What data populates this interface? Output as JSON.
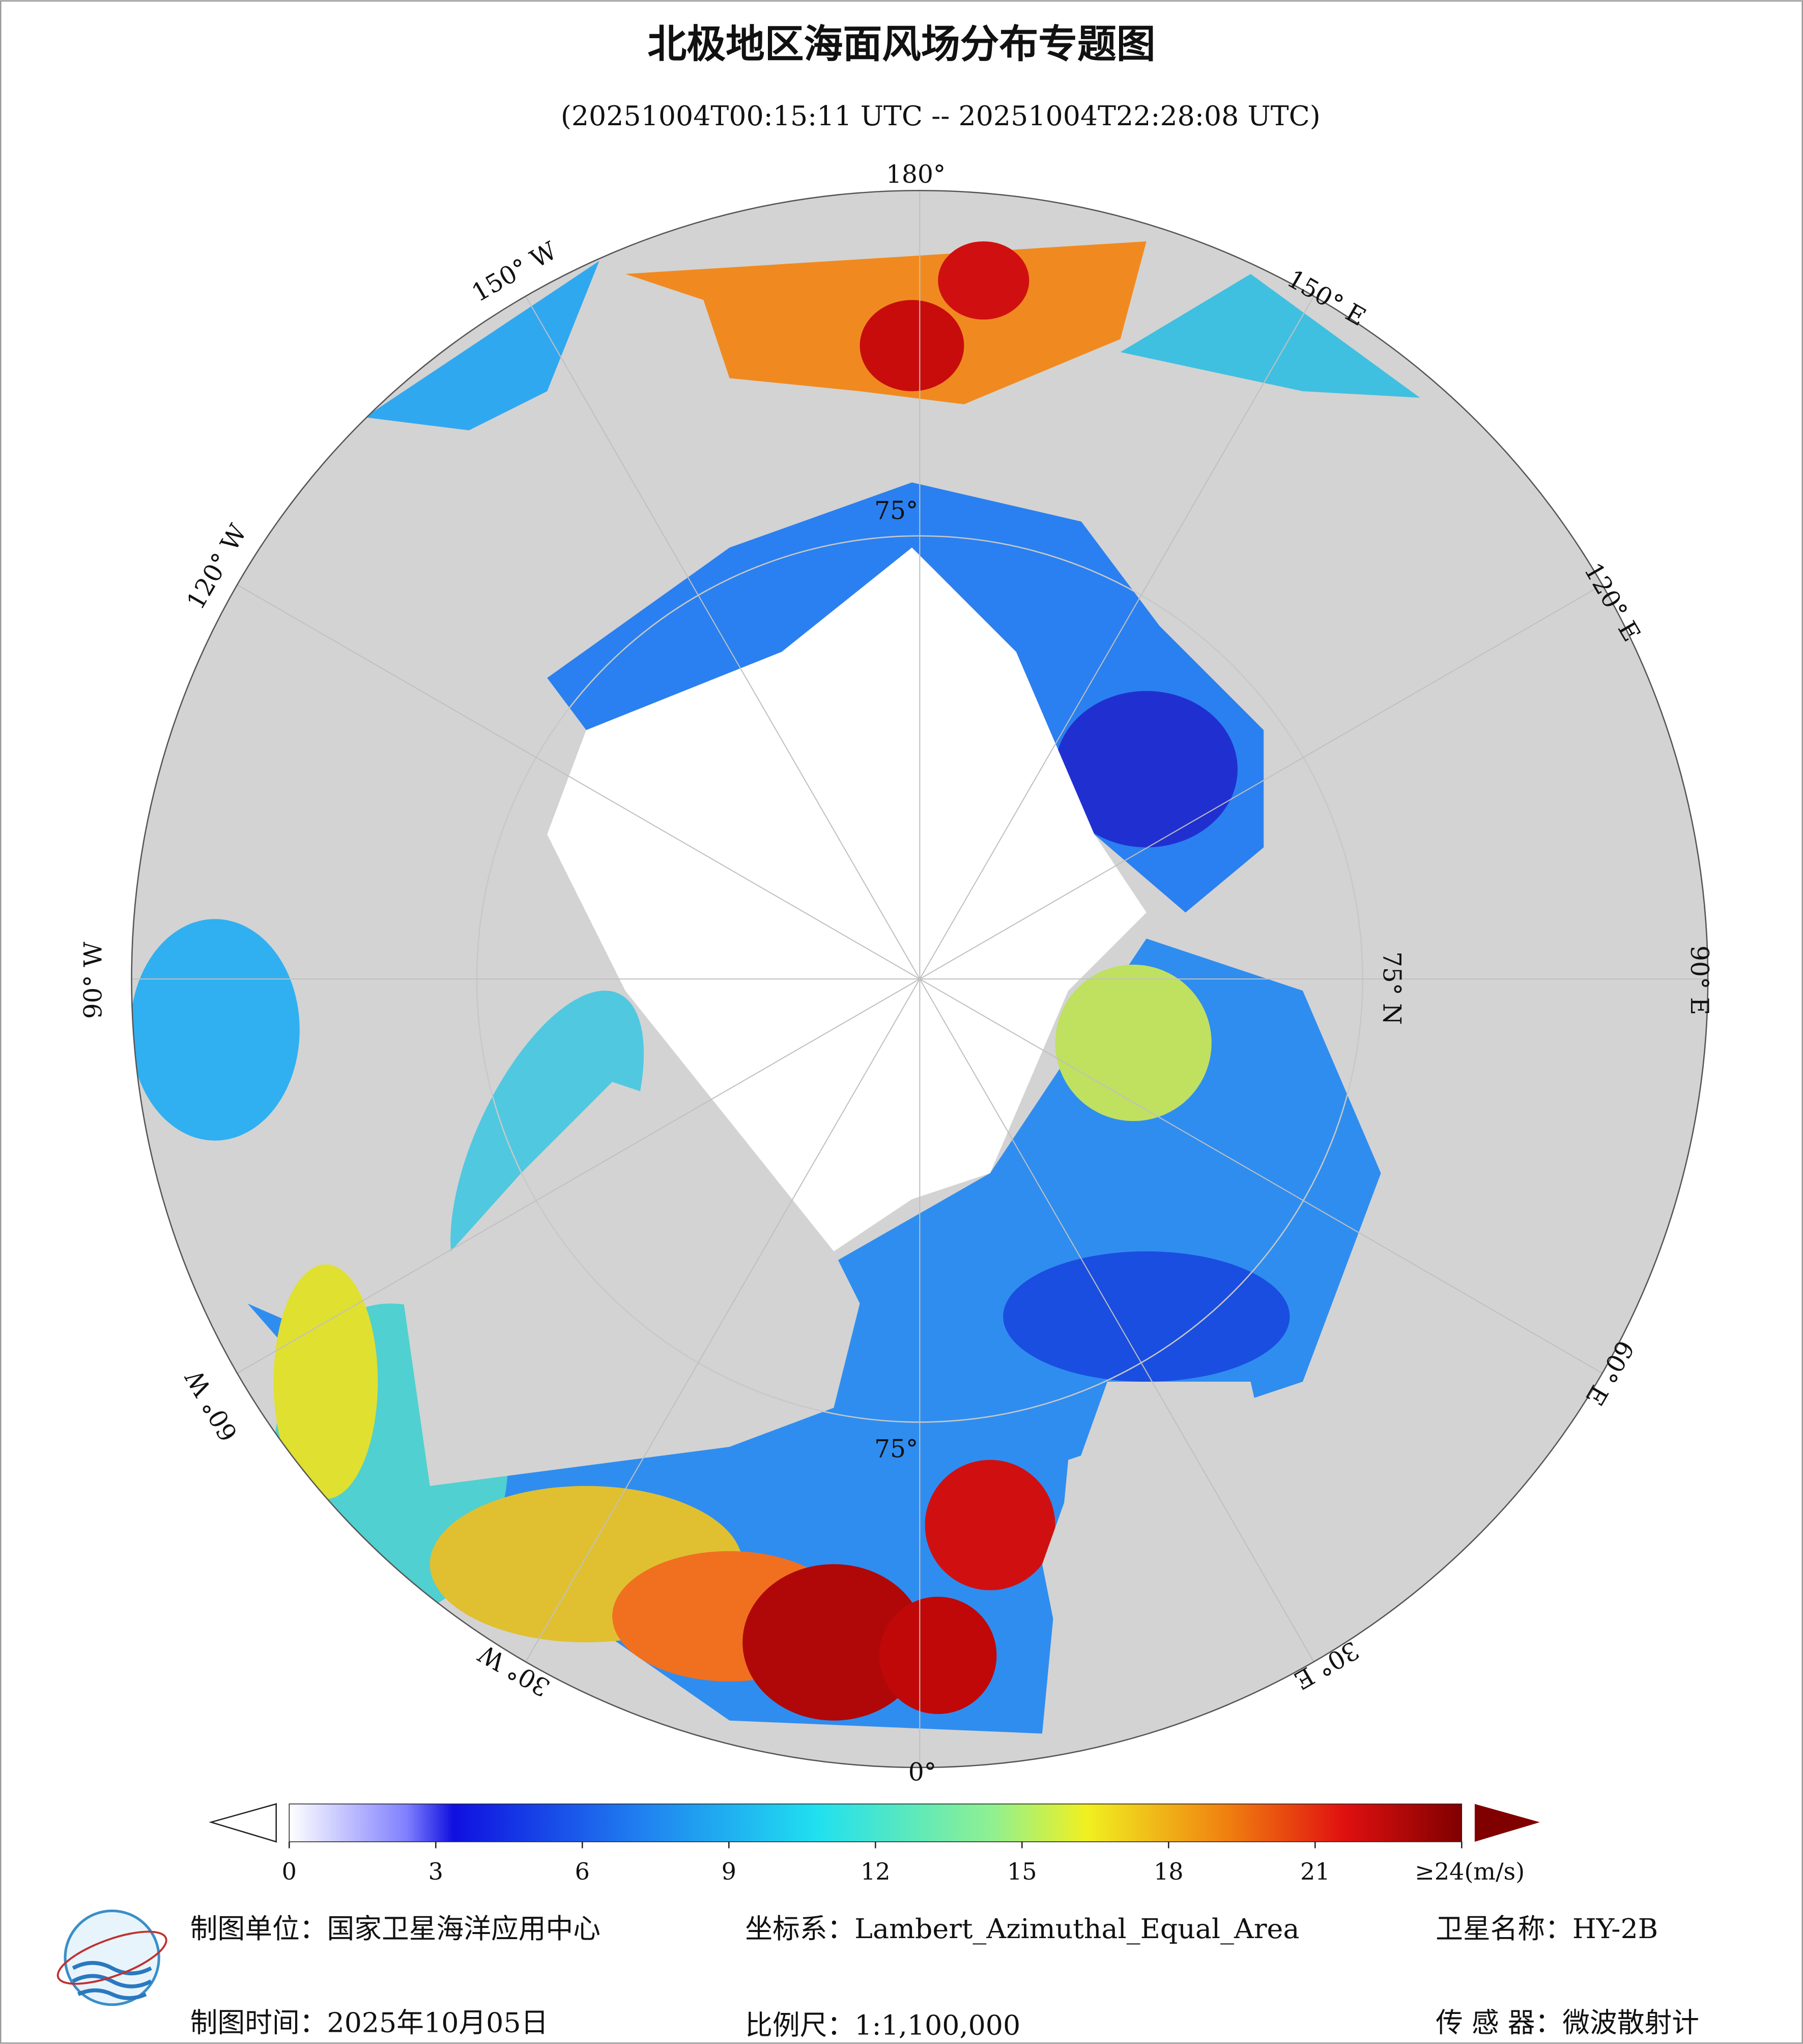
{
  "header": {
    "title": "北极地区海面风场分布专题图",
    "subtitle": "(20251004T00:15:11 UTC -- 20251004T22:28:08 UTC)"
  },
  "map": {
    "longitude_labels": [
      "180°",
      "150° W",
      "150° E",
      "120° W",
      "120° E",
      "90° W",
      "90° E",
      "60° W",
      "60° E",
      "30° W",
      "30° E",
      "0°"
    ],
    "latitude_labels": [
      "75° N",
      "75°",
      "75°"
    ]
  },
  "colorbar": {
    "range": [
      0,
      24
    ],
    "ticks": [
      0,
      3,
      6,
      9,
      12,
      15,
      18,
      21,
      {
        "value": 24,
        "label": "≥24(m/s)"
      }
    ]
  },
  "footer": {
    "unit": "制图单位：国家卫星海洋应用中心",
    "projection": "坐标系：Lambert_Azimuthal_Equal_Area",
    "satellite": "卫星名称：HY-2B",
    "date": "制图时间：2025年10月05日",
    "scale": "比例尺：1:1,100,000",
    "sensor": "传 感 器：微波散射计"
  }
}
